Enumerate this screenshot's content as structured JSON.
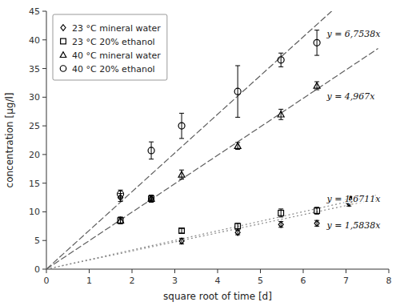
{
  "chart_data": {
    "type": "scatter",
    "title": "",
    "xlabel": "square root of time [d]",
    "ylabel": "concentration [µg/l]",
    "xlim": [
      0,
      8
    ],
    "ylim": [
      0,
      45
    ],
    "xticks": [
      0,
      1,
      2,
      3,
      4,
      5,
      6,
      7,
      8
    ],
    "yticks": [
      0,
      5,
      10,
      15,
      20,
      25,
      30,
      35,
      40,
      45
    ],
    "grid": false,
    "legend": "upper left",
    "x": [
      1.73,
      2.45,
      3.16,
      4.47,
      5.48,
      6.32,
      7.07
    ],
    "trend_x_end": 7.75,
    "series": [
      {
        "name": "23 °C mineral water",
        "color": "#000000",
        "marker": "diamond",
        "line_style": "dotted",
        "values": [
          12.5,
          12.3,
          4.9,
          6.4,
          7.8,
          8.0,
          11.5
        ],
        "errors": [
          0.7,
          0.6,
          0.5,
          0.4,
          0.5,
          0.5,
          0.5
        ],
        "trend_slope": 1.5838
      },
      {
        "name": "23 °C 20% ethanol",
        "color": "#000000",
        "marker": "square",
        "line_style": "dotted",
        "values": [
          8.5,
          12.3,
          6.7,
          7.5,
          9.8,
          10.2,
          12.2
        ],
        "errors": [
          0.5,
          0.5,
          0.4,
          0.5,
          0.7,
          0.6,
          0.5
        ],
        "trend_slope": 1.6711
      },
      {
        "name": "40 °C mineral water",
        "color": "#000000",
        "marker": "triangle",
        "line_style": "dashed",
        "values": [
          8.5,
          12.3,
          16.5,
          21.5,
          27.0,
          32.0,
          12.0
        ],
        "errors": [
          0.6,
          0.6,
          0.8,
          0.6,
          0.9,
          0.7,
          0.5
        ],
        "trend_slope": 4.967
      },
      {
        "name": "40 °C 20% ethanol",
        "color": "#000000",
        "marker": "circle",
        "line_style": "dashed",
        "values": [
          13.1,
          20.7,
          25.0,
          31.0,
          36.5,
          39.5,
          12.0
        ],
        "errors": [
          0.7,
          1.5,
          2.2,
          4.5,
          1.2,
          2.2,
          0.5
        ],
        "trend_slope": 6.7538
      }
    ],
    "annotations": [
      {
        "text": "y = 1,5838x",
        "x": 6.55,
        "y": 7.5
      },
      {
        "text": "y = 1,6711x",
        "x": 6.55,
        "y": 12.2
      },
      {
        "text": "y = 4,967x",
        "x": 6.55,
        "y": 30.0
      },
      {
        "text": "y = 6,7538x",
        "x": 6.55,
        "y": 41.0
      }
    ]
  }
}
